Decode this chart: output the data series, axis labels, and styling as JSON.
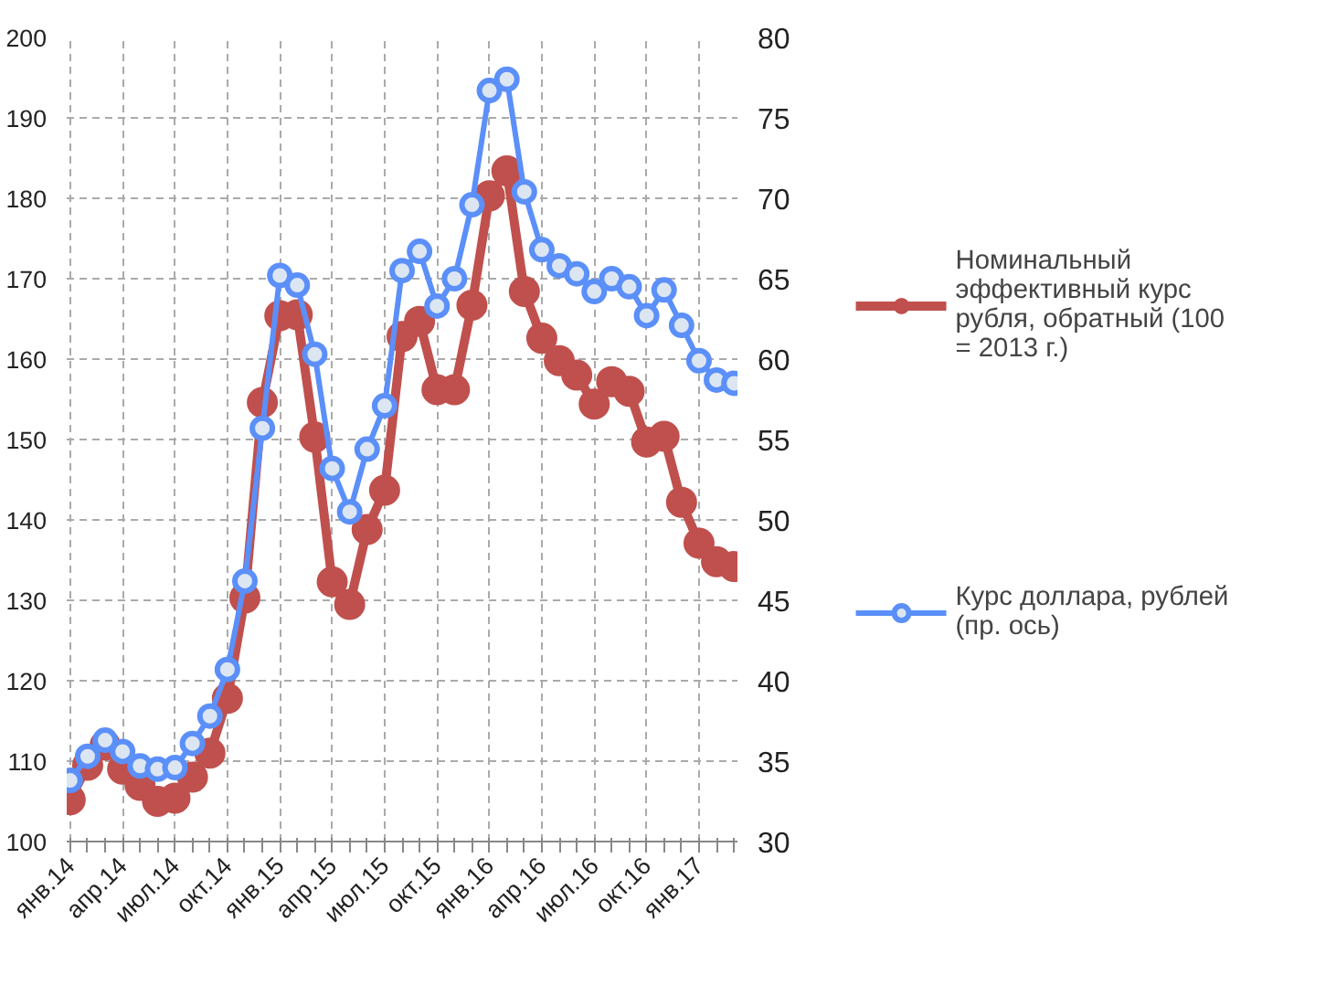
{
  "chart_data": {
    "type": "line",
    "categories": [
      "янв.14",
      null,
      null,
      "апр.14",
      null,
      null,
      "июл.14",
      null,
      null,
      "окт.14",
      null,
      null,
      "янв.15",
      null,
      null,
      "апр.15",
      null,
      null,
      "июл.15",
      null,
      null,
      "окт.15",
      null,
      null,
      "янв.16",
      null,
      null,
      "апр.16",
      null,
      null,
      "июл.16",
      null,
      null,
      "окт.16",
      null,
      null,
      "янв.17",
      null,
      null
    ],
    "series": [
      {
        "name": "Номинальный эффективный курс рубля, обратный (100 = 2013 г.)",
        "color": "#c0504d",
        "values": [
          105.2,
          109.5,
          112,
          109,
          107,
          105,
          105.4,
          108,
          111,
          117.8,
          130.3,
          154.6,
          165.4,
          165.5,
          150.3,
          132.3,
          129.5,
          138.8,
          143.7,
          162.8,
          164.7,
          156.2,
          156.2,
          166.7,
          180.3,
          183.4,
          168.4,
          162.6,
          159.8,
          158.0,
          154.4,
          157.2,
          156.0,
          149.7,
          150.4,
          142.2,
          137.1,
          134.8,
          134.2
        ]
      },
      {
        "name": "Курс доллара, рублей (пр. ось)",
        "color": "#5b8ff9",
        "axis": "y2",
        "values": [
          33.8,
          35.3,
          36.3,
          35.6,
          34.7,
          34.5,
          34.6,
          36.1,
          37.8,
          40.7,
          46.2,
          55.7,
          65.2,
          64.6,
          60.3,
          53.2,
          50.5,
          54.4,
          57.1,
          65.5,
          66.7,
          63.3,
          65.0,
          69.6,
          76.7,
          77.4,
          70.4,
          66.8,
          65.8,
          65.3,
          64.2,
          65.0,
          64.5,
          62.7,
          64.3,
          62.1,
          59.9,
          58.7,
          58.5
        ]
      }
    ],
    "ylim": [
      100,
      200
    ],
    "yticks": [
      100,
      110,
      120,
      130,
      140,
      150,
      160,
      170,
      180,
      190,
      200
    ],
    "y2lim": [
      30,
      80
    ],
    "y2ticks": [
      30,
      35,
      40,
      45,
      50,
      55,
      60,
      65,
      70,
      75,
      80
    ],
    "grid": true,
    "legend": "right",
    "marker": "circle",
    "line_style": "solid"
  }
}
